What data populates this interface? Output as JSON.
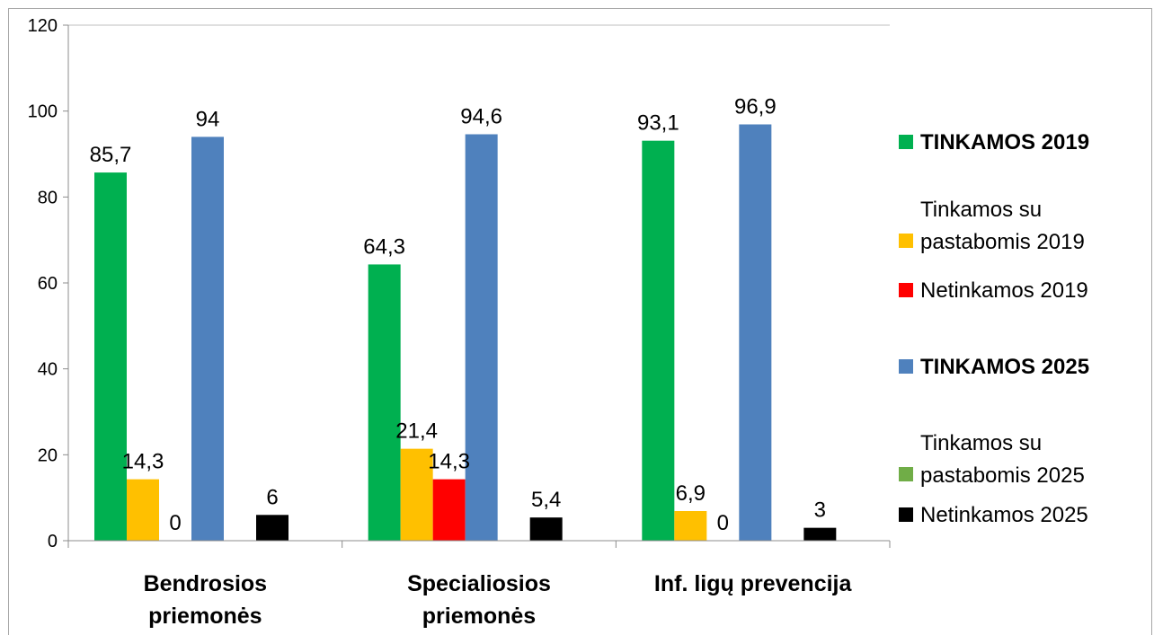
{
  "chart_data": {
    "type": "bar",
    "categories": [
      [
        "Bendrosios",
        "priemonės"
      ],
      [
        "Specialiosios",
        "priemonės"
      ],
      [
        "Inf. ligų prevencija"
      ]
    ],
    "ylim": [
      0,
      120
    ],
    "yticks": [
      0,
      20,
      40,
      60,
      80,
      100,
      120
    ],
    "grid": false,
    "legend_position": "right",
    "series": [
      {
        "name": [
          "TINKAMOS 2019"
        ],
        "bold": true,
        "color": "#00b050",
        "values": [
          85.7,
          64.3,
          93.1
        ],
        "labels": [
          "85,7",
          "64,3",
          "93,1"
        ]
      },
      {
        "name": [
          "Tinkamos su",
          "pastabomis 2019"
        ],
        "bold": false,
        "color": "#ffc000",
        "values": [
          14.3,
          21.4,
          6.9
        ],
        "labels": [
          "14,3",
          "21,4",
          "6,9"
        ]
      },
      {
        "name": [
          "Netinkamos 2019"
        ],
        "bold": false,
        "color": "#ff0000",
        "values": [
          0,
          14.3,
          0
        ],
        "labels": [
          "0",
          "14,3",
          "0"
        ]
      },
      {
        "name": [
          "TINKAMOS 2025"
        ],
        "bold": true,
        "color": "#4f81bd",
        "values": [
          94,
          94.6,
          96.9
        ],
        "labels": [
          "94",
          "94,6",
          "96,9"
        ]
      },
      {
        "name": [
          "Tinkamos su",
          "pastabomis 2025"
        ],
        "bold": false,
        "color": "#70ad47",
        "values": [
          null,
          null,
          null
        ],
        "labels": [
          null,
          null,
          null
        ]
      },
      {
        "name": [
          "Netinkamos 2025"
        ],
        "bold": false,
        "color": "#000000",
        "values": [
          6,
          5.4,
          3
        ],
        "labels": [
          "6",
          "5,4",
          "3"
        ]
      }
    ]
  }
}
